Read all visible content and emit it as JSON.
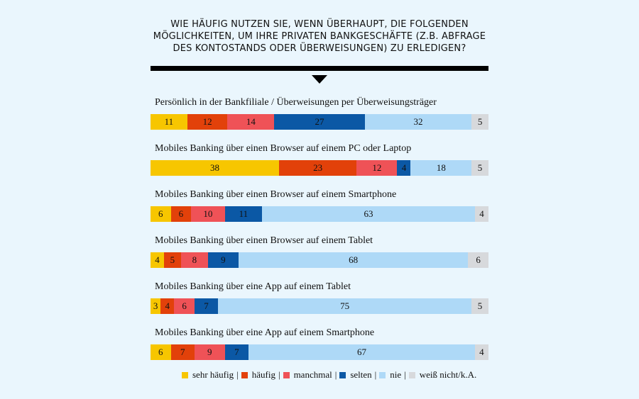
{
  "title_lines": [
    "WIE HÄUFIG NUTZEN SIE, WENN ÜBERHAUPT, DIE FOLGENDEN",
    "MÖGLICHKEITEN, UM IHRE PRIVATEN BANKGESCHÄFTE (Z.B. ABFRAGE",
    "DES KONTOSTANDS ODER ÜBERWEISUNGEN) ZU ERLEDIGEN?"
  ],
  "colors": {
    "sehr_haeufig": "#f7c600",
    "haeufig": "#e2410a",
    "manchmal": "#ef5257",
    "selten": "#0b58a5",
    "nie": "#aed9f7",
    "weiss_nicht": "#d7d9dc"
  },
  "chart_data": {
    "type": "bar",
    "stacked": true,
    "orientation": "horizontal",
    "categories": [
      "Persönlich in der Bankfiliale / Überweisungen per Überweisungsträger",
      "Mobiles Banking über einen Browser auf einem PC oder Laptop",
      "Mobiles Banking über einen Browser auf einem Smartphone",
      "Mobiles Banking über einen Browser auf einem Tablet",
      "Mobiles Banking über eine App auf einem Tablet",
      "Mobiles Banking über eine App auf einem Smartphone"
    ],
    "series": [
      {
        "name": "sehr häufig",
        "color": "#f7c600",
        "values": [
          11,
          38,
          6,
          4,
          3,
          6
        ]
      },
      {
        "name": "häufig",
        "color": "#e2410a",
        "values": [
          12,
          23,
          6,
          5,
          4,
          7
        ]
      },
      {
        "name": "manchmal",
        "color": "#ef5257",
        "values": [
          14,
          12,
          10,
          8,
          6,
          9
        ]
      },
      {
        "name": "selten",
        "color": "#0b58a5",
        "values": [
          27,
          4,
          11,
          9,
          7,
          7
        ]
      },
      {
        "name": "nie",
        "color": "#aed9f7",
        "values": [
          32,
          18,
          63,
          68,
          75,
          67
        ]
      },
      {
        "name": "weiß nicht/k.A.",
        "color": "#d7d9dc",
        "values": [
          5,
          5,
          4,
          6,
          5,
          4
        ]
      }
    ],
    "data_labels": true,
    "legend_position": "bottom",
    "xlim": [
      0,
      100
    ]
  },
  "legend_separator": "|"
}
